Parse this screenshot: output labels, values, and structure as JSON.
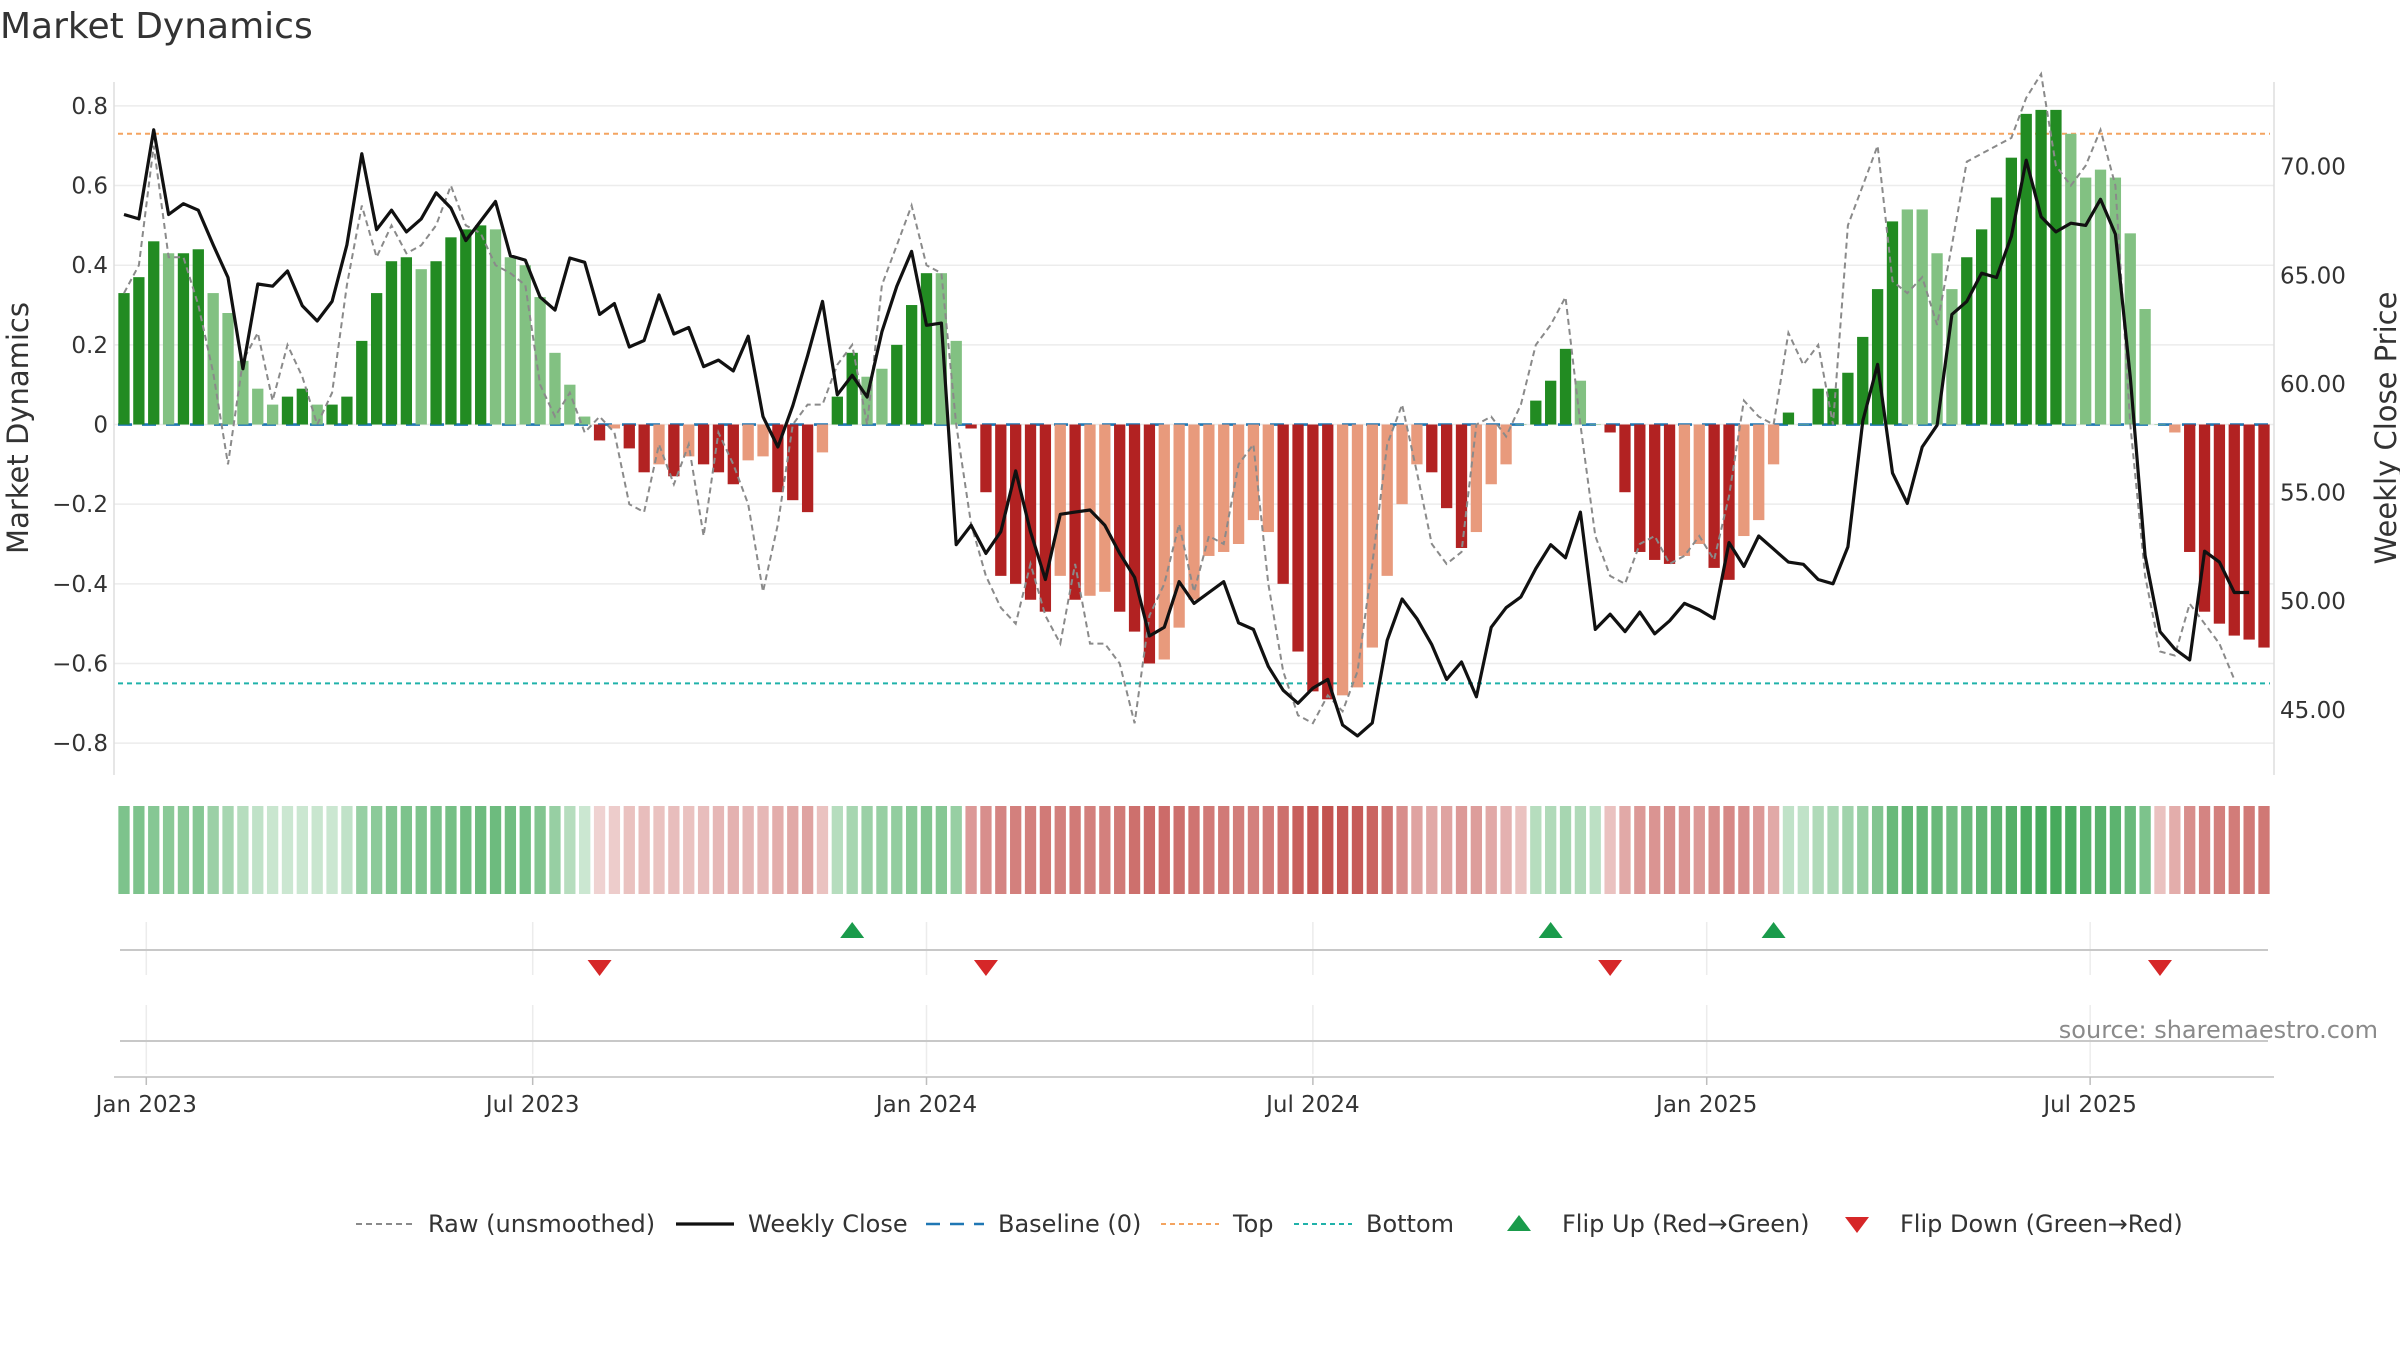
{
  "chart_data": {
    "type": "bar",
    "title": "Market Dynamics",
    "ylabel": "Market Dynamics",
    "y2label": "Weekly Close Price",
    "ylim": [
      -0.88,
      0.86
    ],
    "y2lim": [
      42.0,
      73.9
    ],
    "y_ticks": [
      0.8,
      0.6,
      0.4,
      0.2,
      0,
      -0.2,
      -0.4,
      -0.6,
      -0.8
    ],
    "y_tick_labels": [
      "0.8",
      "0.6",
      "0.4",
      "0.2",
      "0",
      "−0.2",
      "−0.4",
      "−0.6",
      "−0.8"
    ],
    "y2_ticks": [
      70,
      65,
      60,
      55,
      50,
      45
    ],
    "y2_tick_labels": [
      "70.00",
      "65.00",
      "60.00",
      "55.00",
      "50.00",
      "45.00"
    ],
    "x_tick_labels": [
      "Jan 2023",
      "Jul 2023",
      "Jan 2024",
      "Jul 2024",
      "Jan 2025",
      "Jul 2025"
    ],
    "top_line": 0.73,
    "bottom_line": -0.65,
    "grid": true,
    "legend_position": "bottom-center",
    "colors": {
      "bull_strong": "#228b22",
      "bull_weak": "#82c182",
      "bear_strong": "#b22222",
      "bear_weak": "#e89a7c",
      "close": "#111111",
      "raw": "#8a8a8a",
      "baseline": "#1f77b4",
      "top": "#f4a460",
      "bottom": "#20b2aa",
      "flip_up": "#1a9b4b",
      "flip_down": "#d62728"
    },
    "bars": [
      0.33,
      0.37,
      0.46,
      0.43,
      0.43,
      0.44,
      0.33,
      0.28,
      0.16,
      0.09,
      0.05,
      0.07,
      0.09,
      0.05,
      0.05,
      0.07,
      0.21,
      0.33,
      0.41,
      0.42,
      0.39,
      0.41,
      0.47,
      0.49,
      0.5,
      0.49,
      0.42,
      0.4,
      0.32,
      0.18,
      0.1,
      0.02,
      -0.04,
      -0.01,
      -0.06,
      -0.12,
      -0.1,
      -0.13,
      -0.08,
      -0.1,
      -0.12,
      -0.15,
      -0.09,
      -0.08,
      -0.17,
      -0.19,
      -0.22,
      -0.07,
      0.07,
      0.18,
      0.12,
      0.14,
      0.2,
      0.3,
      0.38,
      0.38,
      0.21,
      -0.01,
      -0.17,
      -0.38,
      -0.4,
      -0.44,
      -0.47,
      -0.38,
      -0.44,
      -0.43,
      -0.42,
      -0.47,
      -0.52,
      -0.6,
      -0.59,
      -0.51,
      -0.44,
      -0.33,
      -0.32,
      -0.3,
      -0.24,
      -0.27,
      -0.4,
      -0.57,
      -0.67,
      -0.69,
      -0.68,
      -0.66,
      -0.56,
      -0.38,
      -0.2,
      -0.1,
      -0.12,
      -0.21,
      -0.31,
      -0.27,
      -0.15,
      -0.1,
      0.0,
      0.06,
      0.11,
      0.19,
      0.11,
      0.0,
      -0.02,
      -0.17,
      -0.32,
      -0.34,
      -0.35,
      -0.33,
      -0.3,
      -0.36,
      -0.39,
      -0.28,
      -0.24,
      -0.1,
      0.03,
      0.0,
      0.09,
      0.09,
      0.13,
      0.22,
      0.34,
      0.51,
      0.54,
      0.54,
      0.43,
      0.34,
      0.42,
      0.49,
      0.57,
      0.67,
      0.78,
      0.79,
      0.79,
      0.73,
      0.62,
      0.64,
      0.62,
      0.48,
      0.29,
      0.0,
      -0.02,
      -0.32,
      -0.47,
      -0.5,
      -0.53,
      -0.54,
      -0.56
    ],
    "bar_strength": [
      1,
      1,
      1,
      0,
      1,
      1,
      0,
      0,
      0,
      0,
      0,
      1,
      1,
      0,
      1,
      1,
      1,
      1,
      1,
      1,
      0,
      1,
      1,
      1,
      1,
      0,
      0,
      0,
      0,
      0,
      0,
      0,
      1,
      0,
      1,
      1,
      0,
      1,
      0,
      1,
      1,
      1,
      0,
      0,
      1,
      1,
      1,
      0,
      1,
      1,
      0,
      0,
      1,
      1,
      1,
      0,
      0,
      1,
      1,
      1,
      1,
      1,
      1,
      0,
      1,
      0,
      0,
      1,
      1,
      1,
      0,
      0,
      0,
      0,
      0,
      0,
      0,
      0,
      1,
      1,
      1,
      1,
      0,
      0,
      0,
      0,
      0,
      0,
      1,
      1,
      1,
      0,
      0,
      0,
      0,
      1,
      1,
      1,
      0,
      0,
      1,
      1,
      1,
      1,
      1,
      0,
      0,
      1,
      1,
      0,
      0,
      0,
      1,
      0,
      1,
      1,
      1,
      1,
      1,
      1,
      0,
      0,
      0,
      0,
      1,
      1,
      1,
      1,
      1,
      1,
      1,
      0,
      0,
      0,
      0,
      0,
      0,
      0,
      0,
      1,
      1,
      1,
      1,
      1,
      1,
      1
    ],
    "weekly_close": [
      67.8,
      67.6,
      71.7,
      67.8,
      68.3,
      68.0,
      66.4,
      64.9,
      60.7,
      64.6,
      64.5,
      65.2,
      63.6,
      62.9,
      63.8,
      66.4,
      70.6,
      67.1,
      68.0,
      67.0,
      67.6,
      68.8,
      68.1,
      66.6,
      67.5,
      68.4,
      65.9,
      65.7,
      64.0,
      63.4,
      65.8,
      65.6,
      63.2,
      63.7,
      61.7,
      62.0,
      64.1,
      62.3,
      62.6,
      60.8,
      61.1,
      60.6,
      62.2,
      58.5,
      57.1,
      59.0,
      61.3,
      63.8,
      59.5,
      60.4,
      59.4,
      62.4,
      64.5,
      66.1,
      62.7,
      62.8,
      52.6,
      53.5,
      52.2,
      53.2,
      56.0,
      53.2,
      51.0,
      54.0,
      54.1,
      54.2,
      53.5,
      52.2,
      51.1,
      48.4,
      48.8,
      50.9,
      49.9,
      50.4,
      50.9,
      49.0,
      48.7,
      47.0,
      45.9,
      45.3,
      46.0,
      46.4,
      44.3,
      43.8,
      44.4,
      48.2,
      50.1,
      49.2,
      48.0,
      46.4,
      47.2,
      45.6,
      48.8,
      49.7,
      50.2,
      51.5,
      52.6,
      52.0,
      54.1,
      48.7,
      49.4,
      48.6,
      49.5,
      48.5,
      49.1,
      49.9,
      49.6,
      49.2,
      52.7,
      51.6,
      53.0,
      52.4,
      51.8,
      51.7,
      51.0,
      50.8,
      52.5,
      58.3,
      60.9,
      55.9,
      54.5,
      57.1,
      58.1,
      63.2,
      63.8,
      65.1,
      64.9,
      66.8,
      70.3,
      67.7,
      67.0,
      67.4,
      67.3,
      68.5,
      66.9,
      60.3,
      52.1,
      48.6,
      47.8,
      47.3,
      52.3,
      51.8,
      50.4,
      50.4
    ],
    "raw": [
      0.33,
      0.4,
      0.7,
      0.42,
      0.42,
      0.3,
      0.13,
      -0.1,
      0.16,
      0.23,
      0.06,
      0.2,
      0.12,
      0.0,
      0.08,
      0.35,
      0.55,
      0.42,
      0.5,
      0.43,
      0.45,
      0.5,
      0.6,
      0.5,
      0.48,
      0.4,
      0.38,
      0.35,
      0.1,
      0.02,
      0.08,
      -0.02,
      0.02,
      -0.02,
      -0.2,
      -0.22,
      -0.05,
      -0.15,
      -0.05,
      -0.28,
      -0.02,
      -0.1,
      -0.2,
      -0.42,
      -0.25,
      0.0,
      0.05,
      0.05,
      0.15,
      0.2,
      0.0,
      0.35,
      0.45,
      0.55,
      0.4,
      0.38,
      0.0,
      -0.25,
      -0.38,
      -0.46,
      -0.5,
      -0.35,
      -0.48,
      -0.55,
      -0.35,
      -0.55,
      -0.55,
      -0.6,
      -0.75,
      -0.48,
      -0.4,
      -0.25,
      -0.42,
      -0.28,
      -0.3,
      -0.1,
      -0.05,
      -0.4,
      -0.62,
      -0.73,
      -0.75,
      -0.68,
      -0.72,
      -0.62,
      -0.35,
      -0.05,
      0.05,
      -0.12,
      -0.3,
      -0.35,
      -0.32,
      0.0,
      0.02,
      -0.03,
      0.05,
      0.2,
      0.25,
      0.32,
      0.0,
      -0.28,
      -0.38,
      -0.4,
      -0.3,
      -0.28,
      -0.35,
      -0.33,
      -0.28,
      -0.34,
      -0.18,
      0.06,
      0.02,
      0.0,
      0.23,
      0.15,
      0.2,
      0.0,
      0.5,
      0.6,
      0.7,
      0.36,
      0.33,
      0.37,
      0.25,
      0.45,
      0.66,
      0.68,
      0.7,
      0.72,
      0.82,
      0.88,
      0.65,
      0.6,
      0.65,
      0.74,
      0.6,
      0.0,
      -0.38,
      -0.57,
      -0.58,
      -0.45,
      -0.5,
      -0.55,
      -0.64
    ],
    "regime_strength": [
      0.62,
      0.62,
      0.58,
      0.56,
      0.56,
      0.58,
      0.48,
      0.42,
      0.35,
      0.3,
      0.26,
      0.25,
      0.25,
      0.26,
      0.25,
      0.3,
      0.5,
      0.55,
      0.6,
      0.62,
      0.62,
      0.64,
      0.66,
      0.68,
      0.7,
      0.7,
      0.68,
      0.66,
      0.6,
      0.5,
      0.35,
      0.25,
      -0.22,
      -0.25,
      -0.3,
      -0.32,
      -0.3,
      -0.32,
      -0.3,
      -0.32,
      -0.35,
      -0.38,
      -0.35,
      -0.35,
      -0.4,
      -0.42,
      -0.45,
      -0.3,
      0.35,
      0.42,
      0.48,
      0.5,
      0.52,
      0.56,
      0.6,
      0.58,
      0.5,
      -0.5,
      -0.55,
      -0.6,
      -0.62,
      -0.62,
      -0.65,
      -0.62,
      -0.65,
      -0.62,
      -0.62,
      -0.65,
      -0.7,
      -0.72,
      -0.72,
      -0.7,
      -0.68,
      -0.65,
      -0.65,
      -0.63,
      -0.62,
      -0.64,
      -0.7,
      -0.78,
      -0.82,
      -0.84,
      -0.82,
      -0.8,
      -0.75,
      -0.68,
      -0.55,
      -0.45,
      -0.42,
      -0.45,
      -0.5,
      -0.48,
      -0.42,
      -0.38,
      -0.3,
      0.35,
      0.38,
      0.42,
      0.38,
      0.32,
      -0.3,
      -0.42,
      -0.5,
      -0.52,
      -0.55,
      -0.52,
      -0.5,
      -0.55,
      -0.58,
      -0.55,
      -0.5,
      -0.42,
      0.3,
      0.3,
      0.38,
      0.4,
      0.45,
      0.5,
      0.6,
      0.72,
      0.75,
      0.75,
      0.72,
      0.68,
      0.72,
      0.75,
      0.78,
      0.82,
      0.86,
      0.88,
      0.88,
      0.86,
      0.8,
      0.8,
      0.78,
      0.72,
      0.62,
      -0.3,
      -0.4,
      -0.55,
      -0.6,
      -0.62,
      -0.64,
      -0.65,
      -0.66
    ],
    "flip_up_index": [
      49,
      96,
      111
    ],
    "flip_down_index": [
      32,
      58,
      100,
      137
    ],
    "legend": [
      {
        "key": "raw",
        "label": "Raw (unsmoothed)"
      },
      {
        "key": "close",
        "label": "Weekly Close"
      },
      {
        "key": "baseline",
        "label": "Baseline (0)"
      },
      {
        "key": "top",
        "label": "Top"
      },
      {
        "key": "bottom",
        "label": "Bottom"
      },
      {
        "key": "flip_up",
        "label": "Flip Up (Red→Green)"
      },
      {
        "key": "flip_down",
        "label": "Flip Down (Green→Red)"
      }
    ],
    "source": "source: sharemaestro.com"
  }
}
